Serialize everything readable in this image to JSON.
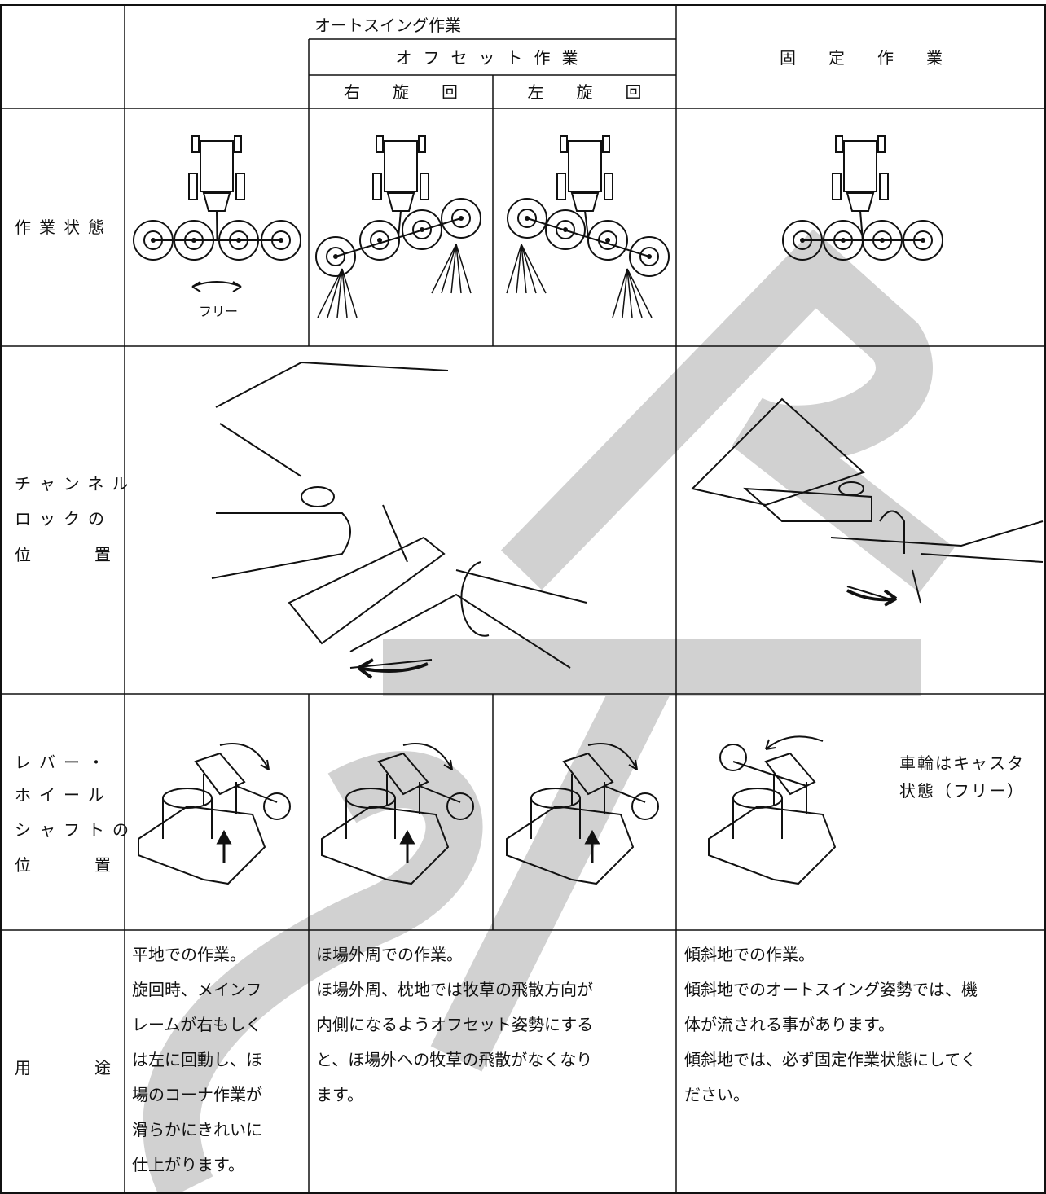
{
  "header": {
    "auto_swing": "オートスイング作業",
    "offset": "オフセット作業",
    "right_turn": "右旋回",
    "left_turn": "左旋回",
    "fixed": "固定作業"
  },
  "rows": [
    {
      "label": [
        "作業状態"
      ],
      "free": "フリー"
    },
    {
      "label": [
        "チャンネル",
        "ロックの",
        "位置"
      ]
    },
    {
      "label": [
        "レバー・",
        "ホイール",
        "シャフトの",
        "位置"
      ],
      "note": [
        "車輪はキャスタ",
        "状態（フリー）"
      ]
    },
    {
      "label": [
        "用途"
      ],
      "auto_swing": [
        "平地での作業。",
        "旋回時、メインフ",
        "レームが右もしく",
        "は左に回動し、ほ",
        "場のコーナ作業が",
        "滑らかにきれいに",
        "仕上がります。"
      ],
      "offset": [
        "ほ場外周での作業。",
        "ほ場外周、枕地では牧草の飛散方向が",
        "内側になるようオフセット姿勢にする",
        "と、ほ場外への牧草の飛散がなくなり",
        "ます。"
      ],
      "fixed": [
        "傾斜地での作業。",
        "傾斜地でのオートスイング姿勢では、機",
        "体が流される事があります。",
        "傾斜地では、必ず固定作業状態にしてく",
        "ださい。"
      ]
    }
  ]
}
